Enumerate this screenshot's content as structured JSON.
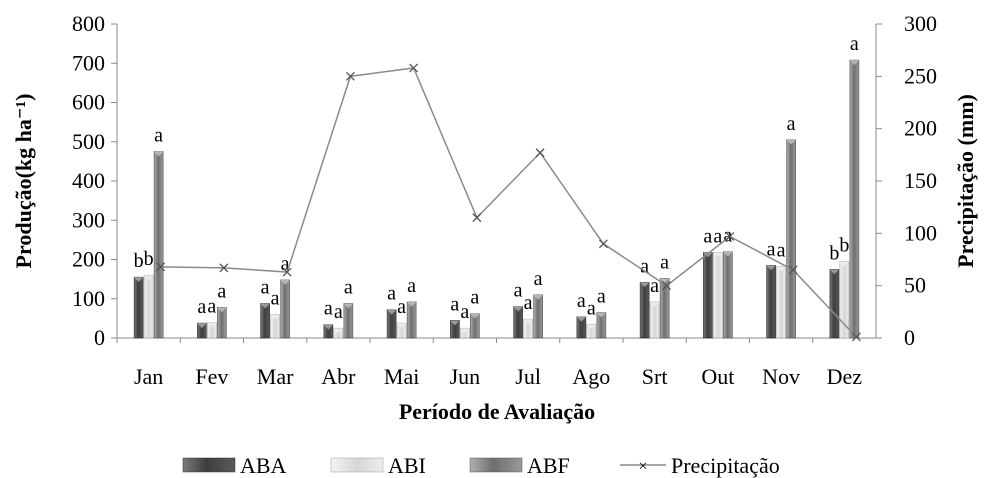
{
  "chart_data": {
    "type": "bar",
    "xlabel": "Período de Avaliação",
    "ylabel": "Produção(kg ha⁻¹)",
    "y2label": "Precipitação (mm)",
    "ylim": [
      0,
      800
    ],
    "y2lim": [
      0,
      300
    ],
    "yticks": [
      "0",
      "100",
      "200",
      "300",
      "400",
      "500",
      "600",
      "700",
      "800"
    ],
    "y2ticks": [
      "0",
      "50",
      "100",
      "150",
      "200",
      "250",
      "300"
    ],
    "categories": [
      "Jan",
      "Fev",
      "Mar",
      "Abr",
      "Mai",
      "Jun",
      "Jul",
      "Ago",
      "Srt",
      "Out",
      "Nov",
      "Dez"
    ],
    "series": [
      {
        "name": "ABA",
        "type": "bar",
        "axis": "left",
        "values": [
          155,
          38,
          88,
          34,
          72,
          45,
          80,
          54,
          142,
          218,
          185,
          175
        ],
        "labels": [
          "b",
          "a",
          "a",
          "a",
          "a",
          "a",
          "a",
          "a",
          "a",
          "a",
          "a",
          "b"
        ]
      },
      {
        "name": "ABI",
        "type": "bar",
        "axis": "left",
        "values": [
          160,
          40,
          60,
          25,
          38,
          25,
          48,
          35,
          92,
          218,
          182,
          195
        ],
        "labels": [
          "b",
          "a",
          "a",
          "a",
          "a",
          "a",
          "a",
          "a",
          "a",
          "a",
          "a",
          "b"
        ]
      },
      {
        "name": "ABF",
        "type": "bar",
        "axis": "left",
        "values": [
          475,
          78,
          148,
          88,
          92,
          62,
          110,
          65,
          152,
          220,
          505,
          708
        ],
        "labels": [
          "a",
          "a",
          "a",
          "a",
          "a",
          "a",
          "a",
          "a",
          "a",
          "a",
          "a",
          "a"
        ]
      },
      {
        "name": "Precipitação",
        "type": "line",
        "axis": "right",
        "values": [
          68,
          67,
          63,
          250,
          258,
          115,
          177,
          90,
          50,
          97,
          65,
          1
        ]
      }
    ],
    "colors": {
      "ABA": "#4f4f4f",
      "ABI": "#e6e6e6",
      "ABF": "#8c8c8c",
      "line": "#8a8a8a",
      "axis": "#888888"
    },
    "legend": "bottom"
  }
}
